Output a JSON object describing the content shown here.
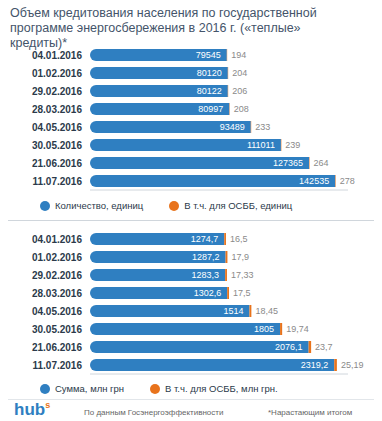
{
  "chart_data": [
    {
      "type": "bar",
      "title": "Объем кредитования населения по государственной программе энергосбережения в 2016 г. («теплые» кредиты)*",
      "orientation": "horizontal",
      "stacked": true,
      "data_labels": true,
      "grid": false,
      "legend": "bottom",
      "tick_labels": "y",
      "categories": [
        "04.01.2016",
        "01.02.2016",
        "29.02.2016",
        "28.03.2016",
        "04.05.2016",
        "30.05.2016",
        "21.06.2016",
        "11.07.2016"
      ],
      "series": [
        {
          "name": "Количество, единиц",
          "color": "#2f7fc1",
          "values": [
            79545,
            80120,
            80122,
            80997,
            93489,
            111011,
            127365,
            142535
          ]
        },
        {
          "name": "В т.ч. для ОСББ, единиц",
          "color": "#e8731c",
          "values": [
            194,
            204,
            206,
            208,
            233,
            239,
            264,
            278
          ]
        }
      ],
      "xlim": [
        0,
        150000
      ],
      "xticks": []
    },
    {
      "type": "bar",
      "orientation": "horizontal",
      "stacked": true,
      "data_labels": true,
      "grid": false,
      "legend": "bottom",
      "tick_labels": "y",
      "categories": [
        "04.01.2016",
        "01.02.2016",
        "29.02.2016",
        "28.03.2016",
        "04.05.2016",
        "30.05.2016",
        "21.06.2016",
        "11.07.2016"
      ],
      "series": [
        {
          "name": "Сумма, млн грн",
          "color": "#2f7fc1",
          "values": [
            1274.7,
            1287.2,
            1283.3,
            1302.6,
            1514,
            1805,
            2076.1,
            2319.2
          ],
          "value_labels": [
            "1274,7",
            "1287,2",
            "1283,3",
            "1302,6",
            "1514",
            "1805",
            "2076,1",
            "2319,2"
          ]
        },
        {
          "name": "В т.ч. для ОСББ, млн грн.",
          "color": "#e8731c",
          "values": [
            16.5,
            17.9,
            17.33,
            17.5,
            18.45,
            19.74,
            23.7,
            25.19
          ],
          "value_labels": [
            "16,5",
            "17,9",
            "17,33",
            "17,5",
            "18,45",
            "19,74",
            "23,7",
            "25,19"
          ]
        }
      ],
      "xlim": [
        0,
        2450
      ],
      "xticks": [],
      "annotations": [
        "hub",
        "s",
        "По данным Госэнергоэффективности",
        "*Нарастающим итогом"
      ]
    }
  ]
}
